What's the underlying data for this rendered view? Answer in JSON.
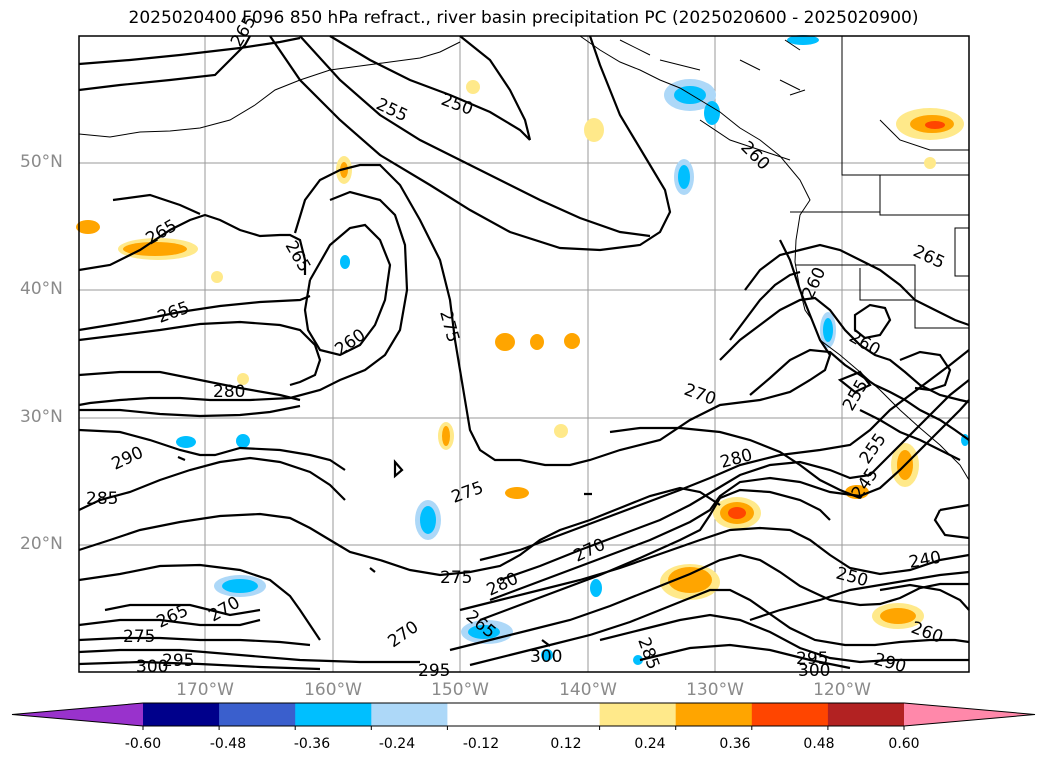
{
  "title": "2025020400 F096 850 hPa refract., river basin precipitation PC (2025020600 - 2025020900)",
  "lat_labels": [
    "50°N",
    "40°N",
    "30°N",
    "20°N"
  ],
  "lon_labels": [
    "170°W",
    "160°W",
    "150°W",
    "140°W",
    "130°W",
    "120°W"
  ],
  "contour_labels": [
    "265",
    "255",
    "250",
    "260",
    "265",
    "265",
    "265",
    "260",
    "275",
    "280",
    "270",
    "290",
    "285",
    "275",
    "280",
    "260",
    "265",
    "265",
    "250",
    "240",
    "260",
    "270",
    "275",
    "280",
    "270",
    "265",
    "275",
    "295",
    "300",
    "295",
    "285",
    "300",
    "290",
    "260",
    "255",
    "255",
    "245",
    "270",
    "300",
    "295"
  ],
  "colorbar": {
    "colors": [
      "#9932cc",
      "#00008b",
      "#3a5fcd",
      "#00bfff",
      "#add8f8",
      "#ffffff",
      "#ffffff",
      "#ffe98a",
      "#ffa500",
      "#ff4500",
      "#b22222",
      "#ff88aa"
    ],
    "tick_labels": [
      "-0.60",
      "-0.48",
      "-0.36",
      "-0.24",
      "-0.12",
      "0.12",
      "0.24",
      "0.36",
      "0.48",
      "0.60"
    ]
  }
}
